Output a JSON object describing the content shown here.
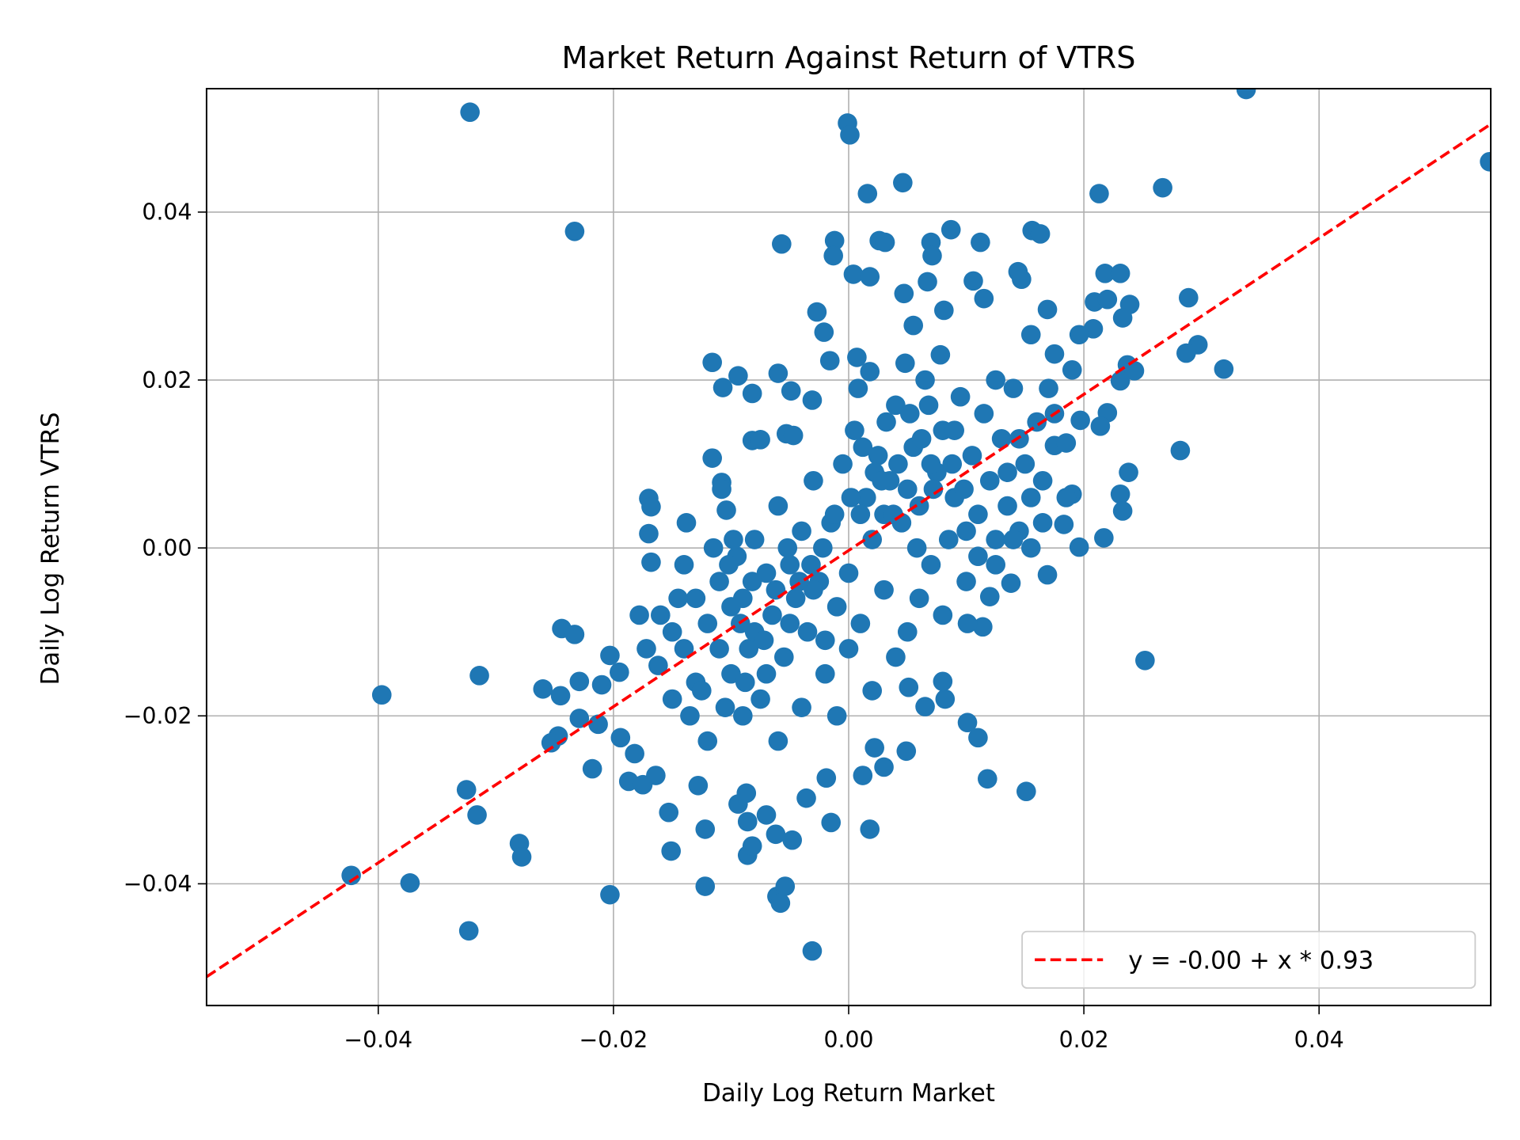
{
  "chart_data": {
    "type": "scatter",
    "title": "Market Return Against Return of VTRS",
    "xlabel": "Daily Log Return Market",
    "ylabel": "Daily Log Return VTRS",
    "xlim": [
      -0.0546,
      0.0546
    ],
    "ylim": [
      -0.0545,
      0.0547
    ],
    "grid": true,
    "legend_placement": "lower-right",
    "xticks": [
      -0.04,
      -0.02,
      0.0,
      0.02,
      0.04
    ],
    "xtick_labels": [
      "−0.04",
      "−0.02",
      "0.00",
      "0.02",
      "0.04"
    ],
    "yticks": [
      -0.04,
      -0.02,
      0.0,
      0.02,
      0.04
    ],
    "ytick_labels": [
      "−0.04",
      "−0.02",
      "0.00",
      "0.02",
      "0.04"
    ],
    "colors": {
      "points": "#1f77b4",
      "fit_line": "#ff0000",
      "grid": "#b0b0b0"
    },
    "fit": {
      "label": "y = -0.00 + x * 0.93",
      "intercept": -0.0003,
      "slope": 0.93,
      "style": "dashed"
    },
    "points": [
      [
        -0.0322,
        0.0519
      ],
      [
        -0.0001,
        0.0506
      ],
      [
        0.0001,
        0.0492
      ],
      [
        0.0338,
        0.0546
      ],
      [
        0.0545,
        0.046
      ],
      [
        0.0046,
        0.0435
      ],
      [
        0.0016,
        0.0422
      ],
      [
        0.0267,
        0.0429
      ],
      [
        0.0213,
        0.0422
      ],
      [
        -0.0233,
        0.0377
      ],
      [
        -0.0057,
        0.0362
      ],
      [
        -0.0012,
        0.0366
      ],
      [
        -0.0013,
        0.0348
      ],
      [
        0.0026,
        0.0366
      ],
      [
        0.0031,
        0.0364
      ],
      [
        0.007,
        0.0364
      ],
      [
        0.0087,
        0.0379
      ],
      [
        0.0112,
        0.0364
      ],
      [
        0.0071,
        0.0348
      ],
      [
        0.0156,
        0.0378
      ],
      [
        0.0163,
        0.0374
      ],
      [
        0.0004,
        0.0326
      ],
      [
        0.0018,
        0.0323
      ],
      [
        0.0144,
        0.0329
      ],
      [
        0.0147,
        0.032
      ],
      [
        0.0218,
        0.0327
      ],
      [
        0.0231,
        0.0327
      ],
      [
        0.0106,
        0.0318
      ],
      [
        0.0047,
        0.0303
      ],
      [
        0.0067,
        0.0317
      ],
      [
        0.0115,
        0.0297
      ],
      [
        0.0289,
        0.0298
      ],
      [
        0.0209,
        0.0293
      ],
      [
        0.022,
        0.0296
      ],
      [
        0.0239,
        0.029
      ],
      [
        0.0233,
        0.0274
      ],
      [
        -0.0027,
        0.0281
      ],
      [
        0.0081,
        0.0283
      ],
      [
        0.0169,
        0.0284
      ],
      [
        -0.0021,
        0.0257
      ],
      [
        0.0208,
        0.0261
      ],
      [
        0.0196,
        0.0254
      ],
      [
        0.0155,
        0.0254
      ],
      [
        0.0055,
        0.0265
      ],
      [
        0.0297,
        0.0242
      ],
      [
        0.0287,
        0.0232
      ],
      [
        0.0319,
        0.0213
      ],
      [
        -0.0116,
        0.0221
      ],
      [
        -0.0094,
        0.0205
      ],
      [
        -0.0107,
        0.0191
      ],
      [
        -0.006,
        0.0208
      ],
      [
        -0.0016,
        0.0223
      ],
      [
        0.0007,
        0.0227
      ],
      [
        0.0237,
        0.0218
      ],
      [
        0.0243,
        0.0211
      ],
      [
        0.0175,
        0.0231
      ],
      [
        0.0231,
        0.0199
      ],
      [
        0.019,
        0.0212
      ],
      [
        -0.0082,
        0.0184
      ],
      [
        -0.0049,
        0.0187
      ],
      [
        -0.0031,
        0.0176
      ],
      [
        0.022,
        0.0161
      ],
      [
        0.0197,
        0.0152
      ],
      [
        0.0214,
        0.0145
      ],
      [
        -0.0082,
        0.0128
      ],
      [
        -0.0075,
        0.0129
      ],
      [
        -0.0053,
        0.0136
      ],
      [
        -0.0047,
        0.0134
      ],
      [
        -0.0116,
        0.0107
      ],
      [
        0.0282,
        0.0116
      ],
      [
        0.0175,
        0.0122
      ],
      [
        0.0185,
        0.0125
      ],
      [
        -0.0108,
        0.0078
      ],
      [
        -0.0108,
        0.007
      ],
      [
        -0.0104,
        0.0045
      ],
      [
        -0.017,
        0.0059
      ],
      [
        -0.0168,
        0.0049
      ],
      [
        0.0238,
        0.009
      ],
      [
        0.019,
        0.0064
      ],
      [
        0.0231,
        0.0064
      ],
      [
        0.0233,
        0.0044
      ],
      [
        -0.0138,
        0.003
      ],
      [
        -0.017,
        0.0017
      ],
      [
        -0.0168,
        -0.0017
      ],
      [
        0.0196,
        0.0001
      ],
      [
        0.0217,
        0.0012
      ],
      [
        0.0183,
        0.0028
      ],
      [
        0.0169,
        -0.0032
      ],
      [
        0.0138,
        -0.0042
      ],
      [
        0.012,
        -0.0058
      ],
      [
        0.0114,
        -0.0094
      ],
      [
        0.0101,
        -0.009
      ],
      [
        -0.0244,
        -0.0096
      ],
      [
        -0.0233,
        -0.0103
      ],
      [
        -0.0203,
        -0.0128
      ],
      [
        0.0252,
        -0.0134
      ],
      [
        -0.0314,
        -0.0152
      ],
      [
        -0.0397,
        -0.0175
      ],
      [
        -0.026,
        -0.0168
      ],
      [
        -0.0245,
        -0.0176
      ],
      [
        -0.0229,
        -0.0159
      ],
      [
        -0.021,
        -0.0163
      ],
      [
        -0.0195,
        -0.0148
      ],
      [
        -0.0229,
        -0.0203
      ],
      [
        -0.0213,
        -0.021
      ],
      [
        -0.0247,
        -0.0224
      ],
      [
        -0.0253,
        -0.0232
      ],
      [
        -0.0218,
        -0.0263
      ],
      [
        -0.0194,
        -0.0226
      ],
      [
        -0.0182,
        -0.0245
      ],
      [
        -0.0187,
        -0.0278
      ],
      [
        -0.0175,
        -0.0282
      ],
      [
        -0.0164,
        -0.0271
      ],
      [
        -0.0325,
        -0.0288
      ],
      [
        -0.0316,
        -0.0318
      ],
      [
        -0.028,
        -0.0352
      ],
      [
        -0.0278,
        -0.0368
      ],
      [
        -0.0153,
        -0.0315
      ],
      [
        -0.0151,
        -0.0361
      ],
      [
        -0.0128,
        -0.0283
      ],
      [
        -0.0122,
        -0.0335
      ],
      [
        -0.0086,
        -0.0366
      ],
      [
        -0.0082,
        -0.0355
      ],
      [
        -0.0086,
        -0.0326
      ],
      [
        -0.0087,
        -0.0292
      ],
      [
        -0.0094,
        -0.0305
      ],
      [
        -0.007,
        -0.0318
      ],
      [
        -0.0062,
        -0.0341
      ],
      [
        -0.0048,
        -0.0348
      ],
      [
        -0.0036,
        -0.0298
      ],
      [
        -0.0015,
        -0.0327
      ],
      [
        -0.0019,
        -0.0274
      ],
      [
        0.0012,
        -0.0271
      ],
      [
        0.0018,
        -0.0335
      ],
      [
        0.003,
        -0.0261
      ],
      [
        0.0049,
        -0.0242
      ],
      [
        0.0022,
        -0.0238
      ],
      [
        0.0118,
        -0.0275
      ],
      [
        0.0151,
        -0.029
      ],
      [
        0.0101,
        -0.0208
      ],
      [
        0.011,
        -0.0226
      ],
      [
        -0.0423,
        -0.039
      ],
      [
        -0.0373,
        -0.0399
      ],
      [
        -0.0323,
        -0.0456
      ],
      [
        -0.0203,
        -0.0413
      ],
      [
        -0.0122,
        -0.0403
      ],
      [
        -0.0061,
        -0.0415
      ],
      [
        -0.0058,
        -0.0423
      ],
      [
        -0.0054,
        -0.0403
      ],
      [
        -0.0031,
        -0.048
      ],
      [
        0.0065,
        -0.0189
      ],
      [
        0.0082,
        -0.018
      ],
      [
        0.008,
        -0.0159
      ],
      [
        0.0051,
        -0.0166
      ],
      [
        -0.016,
        -0.008
      ],
      [
        -0.015,
        -0.01
      ],
      [
        -0.014,
        -0.012
      ],
      [
        -0.013,
        -0.006
      ],
      [
        -0.012,
        -0.009
      ],
      [
        -0.011,
        -0.004
      ],
      [
        -0.01,
        -0.015
      ],
      [
        -0.0095,
        -0.001
      ],
      [
        -0.009,
        -0.006
      ],
      [
        -0.0085,
        -0.012
      ],
      [
        -0.008,
        0.001
      ],
      [
        -0.0075,
        -0.018
      ],
      [
        -0.007,
        -0.003
      ],
      [
        -0.0065,
        -0.008
      ],
      [
        -0.006,
        0.005
      ],
      [
        -0.0055,
        -0.013
      ],
      [
        -0.005,
        -0.002
      ],
      [
        -0.0045,
        -0.006
      ],
      [
        -0.004,
        0.002
      ],
      [
        -0.0035,
        -0.01
      ],
      [
        -0.003,
        0.008
      ],
      [
        -0.0025,
        -0.004
      ],
      [
        -0.002,
        -0.015
      ],
      [
        -0.0015,
        0.003
      ],
      [
        -0.001,
        -0.007
      ],
      [
        -0.0005,
        0.01
      ],
      [
        0.0,
        -0.003
      ],
      [
        0.0005,
        0.014
      ],
      [
        0.001,
        -0.009
      ],
      [
        0.0015,
        0.006
      ],
      [
        0.002,
        0.001
      ],
      [
        0.0025,
        0.011
      ],
      [
        0.003,
        -0.005
      ],
      [
        0.0035,
        0.008
      ],
      [
        0.004,
        0.017
      ],
      [
        0.0045,
        0.003
      ],
      [
        0.005,
        -0.01
      ],
      [
        0.0055,
        0.012
      ],
      [
        0.006,
        0.005
      ],
      [
        0.0065,
        0.02
      ],
      [
        0.007,
        -0.002
      ],
      [
        0.0075,
        0.009
      ],
      [
        0.008,
        0.014
      ],
      [
        0.0085,
        0.001
      ],
      [
        0.009,
        0.006
      ],
      [
        0.0095,
        0.018
      ],
      [
        0.01,
        -0.004
      ],
      [
        0.0105,
        0.011
      ],
      [
        0.011,
        0.004
      ],
      [
        0.0115,
        0.016
      ],
      [
        0.012,
        0.008
      ],
      [
        0.0125,
        0.001
      ],
      [
        0.013,
        0.013
      ],
      [
        0.0135,
        0.005
      ],
      [
        0.014,
        0.019
      ],
      [
        0.0145,
        0.002
      ],
      [
        0.015,
        0.01
      ],
      [
        0.0155,
        0.006
      ],
      [
        0.016,
        0.015
      ],
      [
        0.0165,
        0.003
      ],
      [
        -0.015,
        -0.018
      ],
      [
        -0.014,
        -0.002
      ],
      [
        -0.013,
        -0.016
      ],
      [
        -0.012,
        -0.023
      ],
      [
        -0.011,
        -0.012
      ],
      [
        -0.01,
        -0.007
      ],
      [
        -0.009,
        -0.02
      ],
      [
        -0.008,
        -0.01
      ],
      [
        -0.007,
        -0.015
      ],
      [
        -0.006,
        -0.023
      ],
      [
        -0.005,
        -0.009
      ],
      [
        -0.004,
        -0.019
      ],
      [
        -0.003,
        -0.005
      ],
      [
        -0.002,
        -0.011
      ],
      [
        -0.001,
        -0.02
      ],
      [
        0.0,
        -0.012
      ],
      [
        0.001,
        0.004
      ],
      [
        0.002,
        -0.017
      ],
      [
        0.003,
        0.004
      ],
      [
        0.004,
        -0.013
      ],
      [
        0.005,
        0.007
      ],
      [
        0.006,
        -0.006
      ],
      [
        0.007,
        0.01
      ],
      [
        0.008,
        -0.008
      ],
      [
        0.009,
        0.014
      ],
      [
        0.01,
        0.002
      ],
      [
        0.011,
        -0.001
      ],
      [
        0.0002,
        0.006
      ],
      [
        0.0012,
        0.012
      ],
      [
        0.0022,
        0.009
      ],
      [
        0.0032,
        0.015
      ],
      [
        0.0042,
        0.01
      ],
      [
        0.0052,
        0.016
      ],
      [
        0.0062,
        0.013
      ],
      [
        0.0072,
        0.007
      ],
      [
        -0.0012,
        0.004
      ],
      [
        -0.0022,
        0.0
      ],
      [
        -0.0032,
        -0.002
      ],
      [
        -0.0042,
        -0.004
      ],
      [
        -0.0052,
        0.0
      ],
      [
        -0.0062,
        -0.005
      ],
      [
        -0.0072,
        -0.011
      ],
      [
        -0.0082,
        -0.004
      ],
      [
        -0.0092,
        -0.009
      ],
      [
        -0.0102,
        -0.002
      ],
      [
        0.0008,
        0.019
      ],
      [
        0.0018,
        0.021
      ],
      [
        0.0028,
        0.008
      ],
      [
        0.0038,
        0.004
      ],
      [
        0.0048,
        0.022
      ],
      [
        0.0058,
        0.0
      ],
      [
        0.0068,
        0.017
      ],
      [
        0.0078,
        0.023
      ],
      [
        0.0088,
        0.01
      ],
      [
        0.0098,
        0.007
      ],
      [
        -0.0172,
        -0.012
      ],
      [
        -0.0178,
        -0.008
      ],
      [
        -0.0162,
        -0.014
      ],
      [
        -0.0145,
        -0.006
      ],
      [
        -0.0135,
        -0.02
      ],
      [
        -0.0125,
        -0.017
      ],
      [
        -0.0115,
        0.0
      ],
      [
        -0.0105,
        -0.019
      ],
      [
        -0.0098,
        0.001
      ],
      [
        -0.0088,
        -0.016
      ],
      [
        0.0125,
        0.02
      ],
      [
        0.0135,
        0.009
      ],
      [
        0.0145,
        0.013
      ],
      [
        0.0155,
        0.0
      ],
      [
        0.0165,
        0.008
      ],
      [
        0.0175,
        0.016
      ],
      [
        0.0185,
        0.006
      ],
      [
        0.017,
        0.019
      ],
      [
        0.0125,
        -0.002
      ],
      [
        0.014,
        0.001
      ]
    ]
  }
}
